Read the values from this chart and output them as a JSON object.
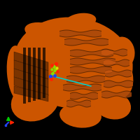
{
  "background_color": "#000000",
  "protein_color": "#cc5500",
  "protein_highlight": "#e06010",
  "protein_shadow": "#993300",
  "ligand_green": "#88dd00",
  "ligand_red": "#ff2200",
  "ligand_blue": "#1144ff",
  "ligand_yellow": "#dddd00",
  "cyan_line": "#00cccc",
  "axis_red": "#ff2200",
  "axis_green": "#00cc00",
  "axis_blue": "#2244ff",
  "figsize": [
    2.0,
    2.0
  ],
  "dpi": 100
}
